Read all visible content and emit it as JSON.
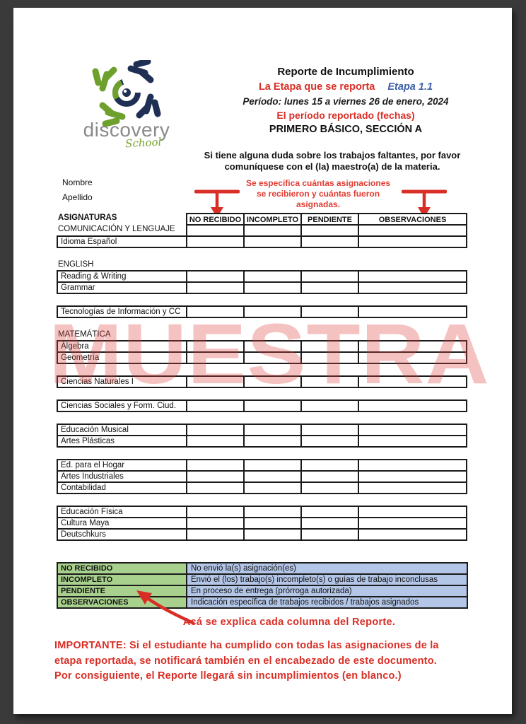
{
  "page": {
    "logo": {
      "name": "discovery",
      "sub": "School"
    },
    "header": {
      "title": "Reporte de Incumplimiento",
      "stage_label": "La Etapa que se reporta",
      "stage_value": "Etapa 1.1",
      "period": "Período: lunes 15  a viernes 26 de enero, 2024",
      "period_note": "El período reportado (fechas)",
      "grade": "PRIMERO BÁSICO, SECCIÓN A"
    },
    "notice": [
      "Si tiene alguna duda sobre los trabajos faltantes, por favor",
      "comuníquese con el (la) maestro(a) de la materia."
    ],
    "name_label": "Nombre",
    "surname_label": "Apellido",
    "assignments_note": [
      "Se especifica cuántas asignaciones",
      "se recibieron y cuántas fueron",
      "asignadas."
    ],
    "table": {
      "col_header_label": "ASIGNATURAS",
      "columns": [
        "NO RECIBIDO",
        "INCOMPLETO",
        "PENDIENTE",
        "OBSERVACIONES"
      ],
      "groups": [
        {
          "header": true,
          "open_rows": [
            "COMUNICACIÓN Y LENGUAJE"
          ],
          "rows": [
            "Idioma Español"
          ]
        },
        {
          "label": "ENGLISH",
          "rows": [
            "Reading & Writing",
            "Grammar"
          ]
        },
        {
          "rows": [
            "Tecnologías de Información y CC"
          ]
        },
        {
          "label": "MATEMÁTICA",
          "rows": [
            "Álgebra",
            "Geometría"
          ]
        },
        {
          "rows": [
            "Ciencias Naturales I"
          ]
        },
        {
          "rows": [
            "Ciencias Sociales y Form. Ciud."
          ]
        },
        {
          "rows": [
            "Educación Musical",
            "Artes Plásticas"
          ]
        },
        {
          "rows": [
            "Ed. para el Hogar",
            "Artes Industriales",
            "Contabilidad"
          ]
        },
        {
          "rows": [
            "Educación Física",
            "Cultura Maya",
            "Deutschkurs"
          ]
        }
      ]
    },
    "watermark": "MUESTRA",
    "legend": {
      "rows": [
        {
          "term": "NO RECIBIDO",
          "desc": "No envió la(s) asignación(es)"
        },
        {
          "term": "INCOMPLETO",
          "desc": "Envió el (los) trabajo(s) incompleto(s) o guías de trabajo inconclusas"
        },
        {
          "term": "PENDIENTE",
          "desc": "En proceso de entrega (prórroga autorizada)"
        },
        {
          "term": "OBSERVACIONES",
          "desc": "Indicación específica de trabajos recibidos / trabajos asignados"
        }
      ],
      "annotation": "Acá se explica cada columna del Reporte."
    },
    "important": [
      "IMPORTANTE: Si el estudiante ha cumplido con todas las asignaciones de la",
      "etapa reportada, se notificará también en el encabezado de este documento.",
      "Por consiguiente, el Reporte llegará sin incumplimientos (en blanco.)"
    ],
    "colors": {
      "accent_red": "#d92e26",
      "accent_blue": "#3c5fa7",
      "legend_green": "#a9d18e",
      "legend_blue": "#b4c6e7",
      "watermark_red": "#de403a",
      "logo_navy": "#203055",
      "logo_green": "#6da02c"
    }
  }
}
